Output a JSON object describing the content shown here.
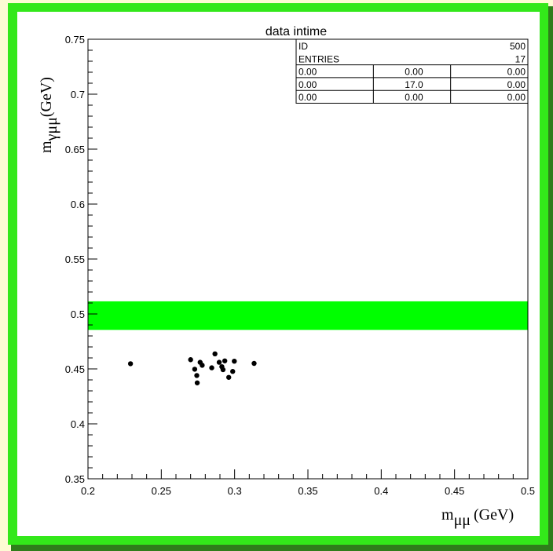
{
  "chart_data": {
    "type": "scatter",
    "title": "data intime",
    "xlabel": {
      "main": "m",
      "sub": "μμ",
      "unit": "(GeV)"
    },
    "ylabel": {
      "main": "m",
      "sub": "γμμ",
      "unit": "(GeV)"
    },
    "xlim": [
      0.2,
      0.5
    ],
    "ylim": [
      0.35,
      0.75
    ],
    "x_ticks": [
      "0.2",
      "0.25",
      "0.3",
      "0.35",
      "0.4",
      "0.45",
      "0.5"
    ],
    "y_ticks": [
      "0.35",
      "0.4",
      "0.45",
      "0.5",
      "0.55",
      "0.6",
      "0.65",
      "0.7",
      "0.75"
    ],
    "band": {
      "y_range": [
        0.4855,
        0.5115
      ],
      "color": "#00ff00"
    },
    "points": [
      {
        "x": 0.229,
        "y": 0.4547
      },
      {
        "x": 0.27,
        "y": 0.4584
      },
      {
        "x": 0.2728,
        "y": 0.4497
      },
      {
        "x": 0.2742,
        "y": 0.444
      },
      {
        "x": 0.2745,
        "y": 0.4373
      },
      {
        "x": 0.2765,
        "y": 0.456
      },
      {
        "x": 0.2779,
        "y": 0.4533
      },
      {
        "x": 0.2844,
        "y": 0.451
      },
      {
        "x": 0.2866,
        "y": 0.4637
      },
      {
        "x": 0.2895,
        "y": 0.456
      },
      {
        "x": 0.2913,
        "y": 0.452
      },
      {
        "x": 0.2921,
        "y": 0.4493
      },
      {
        "x": 0.2933,
        "y": 0.4573
      },
      {
        "x": 0.296,
        "y": 0.4423
      },
      {
        "x": 0.2987,
        "y": 0.4477
      },
      {
        "x": 0.2998,
        "y": 0.457
      },
      {
        "x": 0.3133,
        "y": 0.455
      }
    ],
    "stats_box": {
      "rows": [
        [
          "ID",
          "500"
        ],
        [
          "ENTRIES",
          "17"
        ]
      ],
      "grid": [
        [
          "0.00",
          "0.00",
          "0.00"
        ],
        [
          "0.00",
          "17.0",
          "0.00"
        ],
        [
          "0.00",
          "0.00",
          "0.00"
        ]
      ]
    }
  },
  "colors": {
    "page_background": "#fdfbd4",
    "frame": "#33e81a",
    "frame_shadow": "#2f7d1b",
    "band": "#00ff00",
    "points": "#000000"
  }
}
